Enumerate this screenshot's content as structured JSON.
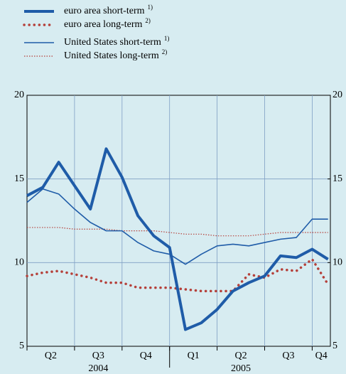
{
  "chart_data": {
    "type": "line",
    "categories": [
      null,
      null,
      null,
      null,
      null,
      null,
      null,
      null,
      null,
      null,
      null,
      null,
      null,
      null,
      null,
      null,
      null,
      null,
      null,
      null
    ],
    "quarter_labels": [
      "Q2",
      "Q3",
      "Q4",
      "Q1",
      "Q2",
      "Q3",
      "Q4"
    ],
    "year_labels": [
      "2004",
      "2005"
    ],
    "ylim": [
      5,
      20
    ],
    "yticks": [
      5,
      10,
      15,
      20
    ],
    "y2lim": [
      5,
      20
    ],
    "y2ticks": [
      5,
      10,
      15,
      20
    ],
    "grid": true,
    "series": [
      {
        "name": "euro area short-term",
        "note": "1)",
        "color": "#1f5ca8",
        "style": "thick",
        "values": [
          14.0,
          14.5,
          16.0,
          14.6,
          13.2,
          16.8,
          15.1,
          12.8,
          11.6,
          10.9,
          6.0,
          6.4,
          7.2,
          8.3,
          8.8,
          9.2,
          10.4,
          10.3,
          10.8,
          10.2
        ]
      },
      {
        "name": "euro area long-term",
        "note": "2)",
        "color": "#b5403a",
        "style": "thick-dotted",
        "values": [
          9.2,
          9.4,
          9.5,
          9.3,
          9.1,
          8.8,
          8.8,
          8.5,
          8.5,
          8.5,
          8.4,
          8.3,
          8.3,
          8.3,
          9.3,
          9.1,
          9.6,
          9.5,
          10.2,
          8.7
        ]
      },
      {
        "name": "United States short-term",
        "note": "1)",
        "color": "#1f5ca8",
        "style": "thin",
        "values": [
          13.6,
          14.4,
          14.1,
          13.2,
          12.4,
          11.9,
          11.9,
          11.2,
          10.7,
          10.5,
          9.9,
          10.5,
          11.0,
          11.1,
          11.0,
          11.2,
          11.4,
          11.5,
          12.6,
          12.6
        ]
      },
      {
        "name": "United States long-term",
        "note": "2)",
        "color": "#b5403a",
        "style": "thin-dotted",
        "values": [
          12.1,
          12.1,
          12.1,
          12.0,
          12.0,
          12.0,
          11.9,
          11.9,
          11.9,
          11.8,
          11.7,
          11.7,
          11.6,
          11.6,
          11.6,
          11.7,
          11.8,
          11.8,
          11.8,
          11.8
        ]
      }
    ]
  }
}
